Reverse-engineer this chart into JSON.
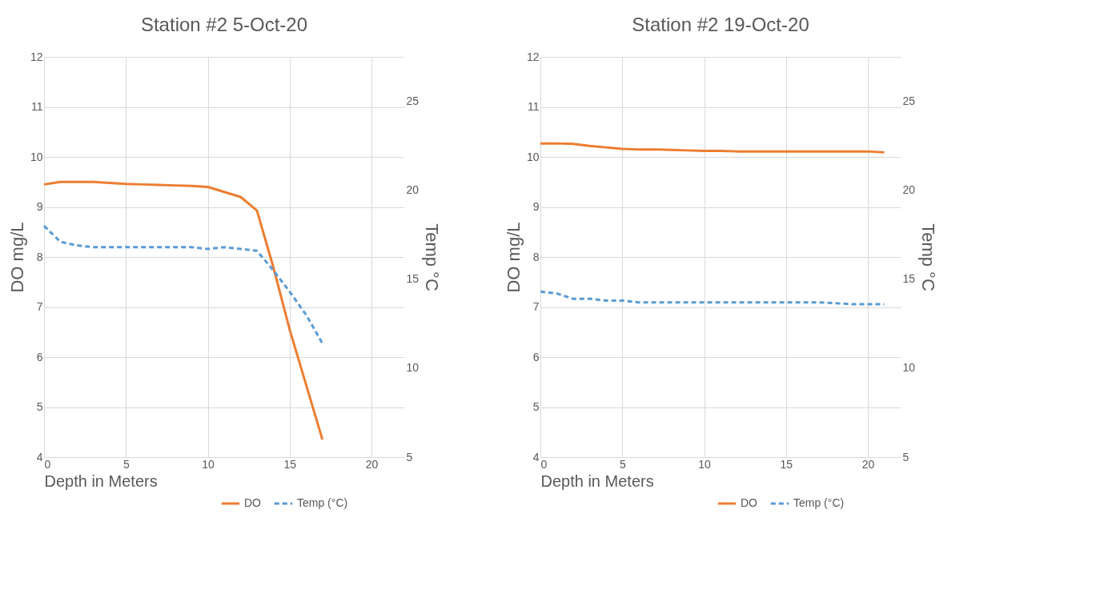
{
  "chart_data": [
    {
      "type": "line",
      "title": "Station #2  5-Oct-20",
      "xlabel": "Depth in Meters",
      "ylabel": "DO mg/L",
      "y2label": "Temp °C",
      "x": [
        0,
        1,
        2,
        3,
        4,
        5,
        6,
        7,
        8,
        9,
        10,
        11,
        12,
        13,
        14,
        15,
        16,
        17
      ],
      "xlim": [
        0,
        22
      ],
      "xticks": [
        0,
        5,
        10,
        15,
        20
      ],
      "ylim": [
        4,
        12
      ],
      "yticks": [
        4,
        5,
        6,
        7,
        8,
        9,
        10,
        11,
        12
      ],
      "y2lim": [
        5,
        27.5
      ],
      "y2ticks": [
        5,
        10,
        15,
        20,
        25
      ],
      "grid": true,
      "legend": "bottom right",
      "marker": "none",
      "series": [
        {
          "name": "DO",
          "color": "#ed7d31",
          "line_style": "solid",
          "values": [
            9.45,
            9.5,
            9.5,
            9.5,
            9.48,
            9.46,
            9.45,
            9.44,
            9.43,
            9.42,
            9.4,
            9.3,
            9.2,
            8.93,
            7.8,
            6.55,
            5.45,
            4.35
          ]
        },
        {
          "name": "Temp (°C)",
          "color": "#5b9bd5",
          "line_style": "dashed",
          "axis": "y2",
          "values": [
            18.0,
            17.1,
            16.9,
            16.8,
            16.8,
            16.8,
            16.8,
            16.8,
            16.8,
            16.8,
            16.7,
            16.8,
            16.7,
            16.6,
            15.5,
            14.3,
            13.0,
            11.4
          ]
        }
      ]
    },
    {
      "type": "line",
      "title": "Station #2  19-Oct-20",
      "xlabel": "Depth in Meters",
      "ylabel": "DO mg/L",
      "y2label": "Temp °C",
      "x": [
        0,
        1,
        2,
        3,
        4,
        5,
        6,
        7,
        8,
        9,
        10,
        11,
        12,
        13,
        14,
        15,
        16,
        17,
        18,
        19,
        20,
        21
      ],
      "xlim": [
        0,
        22
      ],
      "xticks": [
        0,
        5,
        10,
        15,
        20
      ],
      "ylim": [
        4,
        12
      ],
      "yticks": [
        4,
        5,
        6,
        7,
        8,
        9,
        10,
        11,
        12
      ],
      "y2lim": [
        5,
        27.5
      ],
      "y2ticks": [
        5,
        10,
        15,
        20,
        25
      ],
      "grid": true,
      "legend": "bottom right",
      "marker": "none",
      "series": [
        {
          "name": "DO",
          "color": "#ed7d31",
          "line_style": "solid",
          "values": [
            10.27,
            10.27,
            10.26,
            10.22,
            10.19,
            10.16,
            10.15,
            10.15,
            10.14,
            10.13,
            10.12,
            10.12,
            10.11,
            10.11,
            10.11,
            10.11,
            10.11,
            10.11,
            10.11,
            10.11,
            10.11,
            10.09
          ]
        },
        {
          "name": "Temp (°C)",
          "color": "#5b9bd5",
          "line_style": "dashed",
          "axis": "y2",
          "values": [
            14.3,
            14.2,
            13.9,
            13.9,
            13.8,
            13.8,
            13.7,
            13.7,
            13.7,
            13.7,
            13.7,
            13.7,
            13.7,
            13.7,
            13.7,
            13.7,
            13.7,
            13.7,
            13.65,
            13.6,
            13.6,
            13.6
          ]
        }
      ]
    }
  ]
}
